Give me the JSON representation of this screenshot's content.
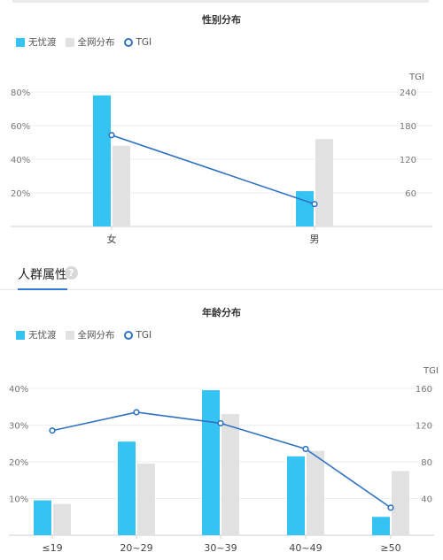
{
  "colors": {
    "primary": "#35c3f2",
    "compare": "#e1e1e1",
    "tgi": "#2f72c4",
    "accent": "#2e7bd6"
  },
  "legend": {
    "primary": "无忧渡",
    "compare": "全网分布",
    "tgi": "TGI"
  },
  "section": {
    "title": "人群属性",
    "help": "?"
  },
  "chart_data": [
    {
      "type": "bar",
      "title": "性别分布",
      "categories": [
        "女",
        "男"
      ],
      "series": [
        {
          "name": "无忧渡",
          "values": [
            78,
            21
          ]
        },
        {
          "name": "全网分布",
          "values": [
            48,
            52
          ]
        }
      ],
      "line": {
        "name": "TGI",
        "values": [
          163,
          40
        ]
      },
      "ylim": [
        0,
        80
      ],
      "y_ticks": [
        "20%",
        "40%",
        "60%",
        "80%"
      ],
      "y2_label": "TGI",
      "y2lim": [
        0,
        240
      ],
      "y2_ticks": [
        "60",
        "120",
        "180",
        "240"
      ],
      "legend_position": "top-left",
      "grid": true
    },
    {
      "type": "bar",
      "title": "年龄分布",
      "categories": [
        "≤19",
        "20~29",
        "30~39",
        "40~49",
        "≥50"
      ],
      "series": [
        {
          "name": "无忧渡",
          "values": [
            9.5,
            25.5,
            39.5,
            21.5,
            5
          ]
        },
        {
          "name": "全网分布",
          "values": [
            8.5,
            19.5,
            33,
            23,
            17.5
          ]
        }
      ],
      "line": {
        "name": "TGI",
        "values": [
          114,
          134,
          122,
          94,
          30
        ]
      },
      "ylim": [
        0,
        40
      ],
      "y_ticks": [
        "10%",
        "20%",
        "30%",
        "40%"
      ],
      "y2_label": "TGI",
      "y2lim": [
        0,
        160
      ],
      "y2_ticks": [
        "40",
        "80",
        "120",
        "160"
      ],
      "legend_position": "top-left",
      "grid": true
    }
  ]
}
